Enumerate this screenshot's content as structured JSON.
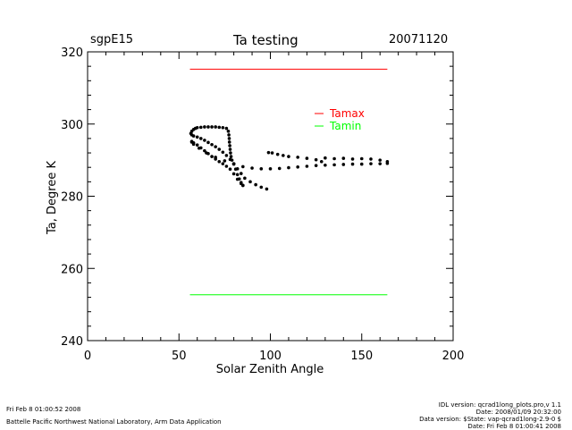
{
  "header": {
    "site": "sgpE15",
    "title": "Ta testing",
    "date": "20071120"
  },
  "chart_data": {
    "type": "scatter",
    "title": "Ta testing",
    "xlabel": "Solar Zenith Angle",
    "ylabel": "Ta, Degree K",
    "xlim": [
      0,
      200
    ],
    "ylim": [
      240,
      320
    ],
    "xticks": [
      0,
      50,
      100,
      150,
      200
    ],
    "yticks": [
      240,
      260,
      280,
      300,
      320
    ],
    "legend": [
      {
        "name": "Tamax",
        "color": "#ff0000"
      },
      {
        "name": "Tamin",
        "color": "#00ff00"
      }
    ],
    "series": [
      {
        "name": "Tamax",
        "type": "line",
        "color": "#ff0000",
        "x": [
          56,
          164
        ],
        "y": [
          315.2,
          315.2
        ]
      },
      {
        "name": "Tamin",
        "type": "line",
        "color": "#00ff00",
        "x": [
          56,
          164
        ],
        "y": [
          252.7,
          252.7
        ]
      },
      {
        "name": "Ta",
        "type": "points",
        "color": "#000000",
        "x": [
          98,
          95,
          92,
          89,
          86,
          84,
          82,
          80,
          78,
          76,
          74,
          72,
          70,
          68,
          66,
          64,
          62,
          60,
          58,
          57,
          56.5,
          57,
          58,
          59,
          60,
          62,
          64,
          66,
          68,
          70,
          72,
          74,
          76,
          77,
          77.3,
          77.5,
          77.6,
          77.8,
          78,
          78.2,
          78.5,
          79,
          80,
          81,
          82,
          83,
          84,
          85,
          85,
          84,
          82,
          80,
          78,
          76,
          74,
          72,
          70,
          68,
          66,
          64,
          62,
          60,
          58,
          57,
          57,
          58,
          61,
          65,
          70,
          75,
          80,
          85,
          90,
          95,
          100,
          105,
          110,
          115,
          120,
          125,
          130,
          135,
          140,
          145,
          150,
          155,
          160,
          164,
          164,
          160,
          155,
          150,
          145,
          140,
          135,
          130,
          128,
          125,
          120,
          115,
          110,
          107,
          104,
          101,
          99
        ],
        "y": [
          282,
          282.5,
          283.2,
          284,
          285,
          286.3,
          287.6,
          289,
          290.2,
          291.3,
          292.2,
          293,
          293.7,
          294.3,
          294.9,
          295.5,
          296,
          296.4,
          296.7,
          297,
          297.4,
          298,
          298.5,
          298.8,
          299,
          299.1,
          299.2,
          299.2,
          299.2,
          299.2,
          299.1,
          299,
          298.8,
          298,
          297,
          296,
          295,
          294,
          293,
          292,
          291,
          290,
          289,
          287.5,
          286,
          284.8,
          283.8,
          283,
          283,
          283.5,
          284.7,
          286.2,
          287.5,
          288.3,
          289,
          289.6,
          290.3,
          291,
          291.8,
          292.6,
          293.4,
          294.2,
          294.8,
          295.2,
          295,
          294.4,
          293.3,
          292,
          290.8,
          289.8,
          288.9,
          288.2,
          287.8,
          287.6,
          287.6,
          287.7,
          287.9,
          288.1,
          288.3,
          288.5,
          288.6,
          288.7,
          288.8,
          288.9,
          288.9,
          289,
          289,
          289.1,
          289.6,
          290,
          290.3,
          290.4,
          290.3,
          290.5,
          290.4,
          290.6,
          289.6,
          290.1,
          290.5,
          290.8,
          291,
          291.3,
          291.6,
          292,
          292.1
        ]
      }
    ]
  },
  "footer": {
    "run_date": "Fri Feb  8 01:00:52 2008",
    "lab": "Battelle Pacific Northwest National Laboratory, Arm Data Application",
    "idl_version": "IDL version: qcrad1long_plots.pro,v 1.1",
    "idl_date": "Date: 2008/01/09 20:32:00",
    "data_version": "Data version: $State: vap-qcrad1long-2.9-0 $",
    "data_date": "Date: Fri Feb  8 01:00:41 2008"
  }
}
